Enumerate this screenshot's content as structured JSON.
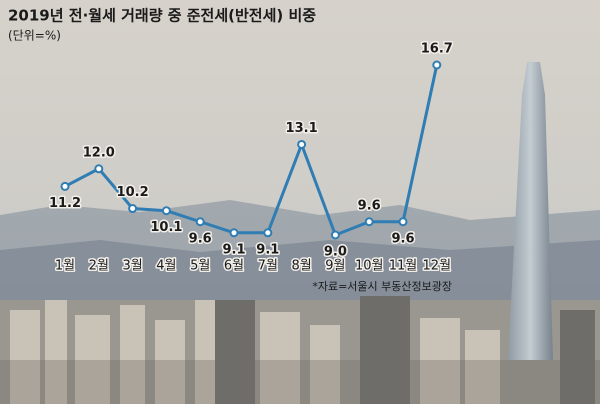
{
  "chart_data": {
    "type": "line",
    "title": "2019년 전·월세 거래량 중 준전세(반전세) 비중",
    "subtitle": "(단위=%)",
    "categories": [
      "1월",
      "2월",
      "3월",
      "4월",
      "5월",
      "6월",
      "7월",
      "8월",
      "9월",
      "10월",
      "11월",
      "12월"
    ],
    "values": [
      11.2,
      12.0,
      10.2,
      10.1,
      9.6,
      9.1,
      9.1,
      13.1,
      9.0,
      9.6,
      9.6,
      16.7
    ],
    "value_labels": [
      "11.2",
      "12.0",
      "10.2",
      "10.1",
      "9.6",
      "9.1",
      "9.1",
      "13.1",
      "9.0",
      "9.6",
      "9.6",
      "16.7"
    ],
    "color": "#2f7db3",
    "source": "*자료=서울시 부동산정보광장"
  }
}
